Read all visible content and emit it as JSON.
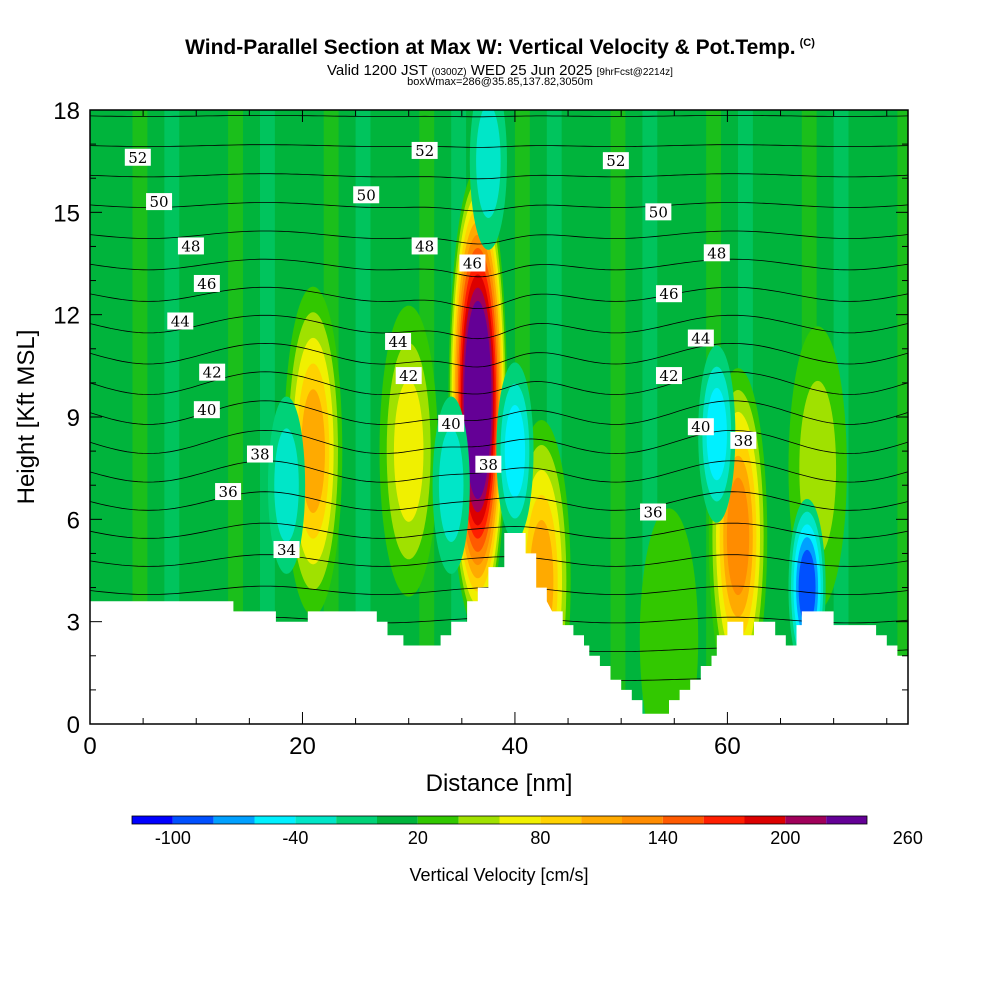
{
  "title": {
    "main": "Wind-Parallel Section at Max W: Vertical Velocity & Pot.Temp.",
    "copyright": "(C)",
    "valid_prefix": "Valid 1200 JST",
    "valid_utc": "(0300Z)",
    "valid_date": "WED 25 Jun 2025",
    "forecast": "[9hrFcst@2214z]",
    "boxinfo": "boxWmax=286@35.85,137.82,3050m"
  },
  "chart_data": {
    "type": "heatmap",
    "xlabel": "Distance [nm]",
    "ylabel": "Height [Kft MSL]",
    "xlim": [
      0,
      77
    ],
    "ylim": [
      0,
      18
    ],
    "x_ticks": [
      0,
      20,
      40,
      60
    ],
    "y_ticks": [
      0,
      3,
      6,
      9,
      12,
      15,
      18
    ],
    "colorbar": {
      "label": "Vertical Velocity [cm/s]",
      "ticks": [
        "-100",
        "-40",
        "20",
        "80",
        "140",
        "200",
        "260"
      ],
      "colors": [
        "#0000ff",
        "#0050ff",
        "#00a0ff",
        "#00f0ff",
        "#00e6c8",
        "#00d278",
        "#00b43c",
        "#32c800",
        "#a0e100",
        "#f0f000",
        "#ffd200",
        "#ffaa00",
        "#ff8c00",
        "#ff5a00",
        "#ff1e00",
        "#dc0000",
        "#a0005a",
        "#640096"
      ]
    },
    "terrain_profile": [
      [
        0,
        3.6
      ],
      [
        13.5,
        3.6
      ],
      [
        13.5,
        3.3
      ],
      [
        17.5,
        3.3
      ],
      [
        17.5,
        3
      ],
      [
        20.5,
        3
      ],
      [
        20.5,
        3.3
      ],
      [
        27,
        3.3
      ],
      [
        27,
        3
      ],
      [
        28,
        3
      ],
      [
        28,
        2.6
      ],
      [
        29.5,
        2.6
      ],
      [
        29.5,
        2.3
      ],
      [
        33,
        2.3
      ],
      [
        33,
        2.6
      ],
      [
        34,
        2.6
      ],
      [
        34,
        3
      ],
      [
        35.5,
        3
      ],
      [
        35.5,
        3.6
      ],
      [
        36.5,
        3.6
      ],
      [
        36.5,
        4
      ],
      [
        37.5,
        4
      ],
      [
        37.5,
        4.6
      ],
      [
        39,
        4.6
      ],
      [
        39,
        5.6
      ],
      [
        41,
        5.6
      ],
      [
        41,
        5
      ],
      [
        42,
        5
      ],
      [
        42,
        4
      ],
      [
        43,
        4
      ],
      [
        43,
        3.6
      ],
      [
        43.5,
        3.3
      ],
      [
        44.5,
        3.3
      ],
      [
        44.5,
        2.9
      ],
      [
        45.5,
        2.9
      ],
      [
        45.5,
        2.6
      ],
      [
        46.5,
        2.6
      ],
      [
        46.5,
        2.3
      ],
      [
        47,
        2.3
      ],
      [
        47,
        2
      ],
      [
        48,
        2
      ],
      [
        48,
        1.7
      ],
      [
        49,
        1.7
      ],
      [
        49,
        1.3
      ],
      [
        50,
        1.3
      ],
      [
        50,
        1
      ],
      [
        51,
        1
      ],
      [
        51,
        0.7
      ],
      [
        52,
        0.7
      ],
      [
        52,
        0.3
      ],
      [
        54.5,
        0.3
      ],
      [
        54.5,
        0.7
      ],
      [
        55.5,
        0.7
      ],
      [
        55.5,
        1
      ],
      [
        56.5,
        1
      ],
      [
        56.5,
        1.3
      ],
      [
        57.5,
        1.3
      ],
      [
        57.5,
        1.7
      ],
      [
        58.5,
        1.7
      ],
      [
        58.5,
        2
      ],
      [
        59,
        2
      ],
      [
        59,
        2.6
      ],
      [
        60,
        2.6
      ],
      [
        60,
        3
      ],
      [
        61.5,
        3
      ],
      [
        61.5,
        2.6
      ],
      [
        62.5,
        2.6
      ],
      [
        62.5,
        3
      ],
      [
        64.5,
        3
      ],
      [
        64.5,
        2.6
      ],
      [
        65.5,
        2.6
      ],
      [
        65.5,
        2.3
      ],
      [
        66.5,
        2.3
      ],
      [
        66.5,
        2.9
      ],
      [
        67,
        2.9
      ],
      [
        67,
        3.3
      ],
      [
        70,
        3.3
      ],
      [
        70,
        2.9
      ],
      [
        74,
        2.9
      ],
      [
        74,
        2.6
      ],
      [
        75,
        2.6
      ],
      [
        75,
        2.3
      ],
      [
        76,
        2.3
      ],
      [
        76,
        2
      ],
      [
        77,
        2
      ],
      [
        77,
        0
      ],
      [
        0,
        0
      ]
    ],
    "updraft_cores": [
      {
        "x": 36.5,
        "y": 9.5,
        "w": 286
      },
      {
        "x": 21,
        "y": 8,
        "w": 110
      },
      {
        "x": 30,
        "y": 8,
        "w": 60
      },
      {
        "x": 61,
        "y": 5.5,
        "w": 120
      },
      {
        "x": 68.5,
        "y": 7.5,
        "w": 50
      },
      {
        "x": 42.5,
        "y": 4.2,
        "w": 100
      },
      {
        "x": 54.5,
        "y": 2.5,
        "w": 20
      }
    ],
    "downdraft_cores": [
      {
        "x": 40,
        "y": 8,
        "w": -70
      },
      {
        "x": 67.5,
        "y": 4,
        "w": -100
      },
      {
        "x": 59,
        "y": 8.5,
        "w": -60
      },
      {
        "x": 18.5,
        "y": 7,
        "w": -40
      },
      {
        "x": 34,
        "y": 7,
        "w": -40
      },
      {
        "x": 37.5,
        "y": 16.5,
        "w": -40
      }
    ],
    "isentrope_labels": [
      {
        "text": "52",
        "x": 4.5,
        "y": 16.6
      },
      {
        "text": "52",
        "x": 31.5,
        "y": 16.8
      },
      {
        "text": "52",
        "x": 49.5,
        "y": 16.5
      },
      {
        "text": "50",
        "x": 6.5,
        "y": 15.3
      },
      {
        "text": "50",
        "x": 26,
        "y": 15.5
      },
      {
        "text": "50",
        "x": 53.5,
        "y": 15
      },
      {
        "text": "48",
        "x": 9.5,
        "y": 14
      },
      {
        "text": "48",
        "x": 31.5,
        "y": 14
      },
      {
        "text": "48",
        "x": 59,
        "y": 13.8
      },
      {
        "text": "46",
        "x": 11,
        "y": 12.9
      },
      {
        "text": "46",
        "x": 36,
        "y": 13.5
      },
      {
        "text": "46",
        "x": 54.5,
        "y": 12.6
      },
      {
        "text": "44",
        "x": 8.5,
        "y": 11.8
      },
      {
        "text": "44",
        "x": 29,
        "y": 11.2
      },
      {
        "text": "44",
        "x": 57.5,
        "y": 11.3
      },
      {
        "text": "42",
        "x": 11.5,
        "y": 10.3
      },
      {
        "text": "42",
        "x": 30,
        "y": 10.2
      },
      {
        "text": "42",
        "x": 54.5,
        "y": 10.2
      },
      {
        "text": "40",
        "x": 11,
        "y": 9.2
      },
      {
        "text": "40",
        "x": 34,
        "y": 8.8
      },
      {
        "text": "40",
        "x": 57.5,
        "y": 8.7
      },
      {
        "text": "38",
        "x": 16,
        "y": 7.9
      },
      {
        "text": "38",
        "x": 37.5,
        "y": 7.6
      },
      {
        "text": "38",
        "x": 61.5,
        "y": 8.3
      },
      {
        "text": "36",
        "x": 13,
        "y": 6.8
      },
      {
        "text": "36",
        "x": 53,
        "y": 6.2
      },
      {
        "text": "34",
        "x": 18.5,
        "y": 5.1
      }
    ],
    "isentropes": [
      33,
      34,
      35,
      36,
      37,
      38,
      39,
      40,
      41,
      42,
      43,
      44,
      45,
      46,
      47,
      48,
      49,
      50,
      51,
      52,
      53
    ]
  }
}
